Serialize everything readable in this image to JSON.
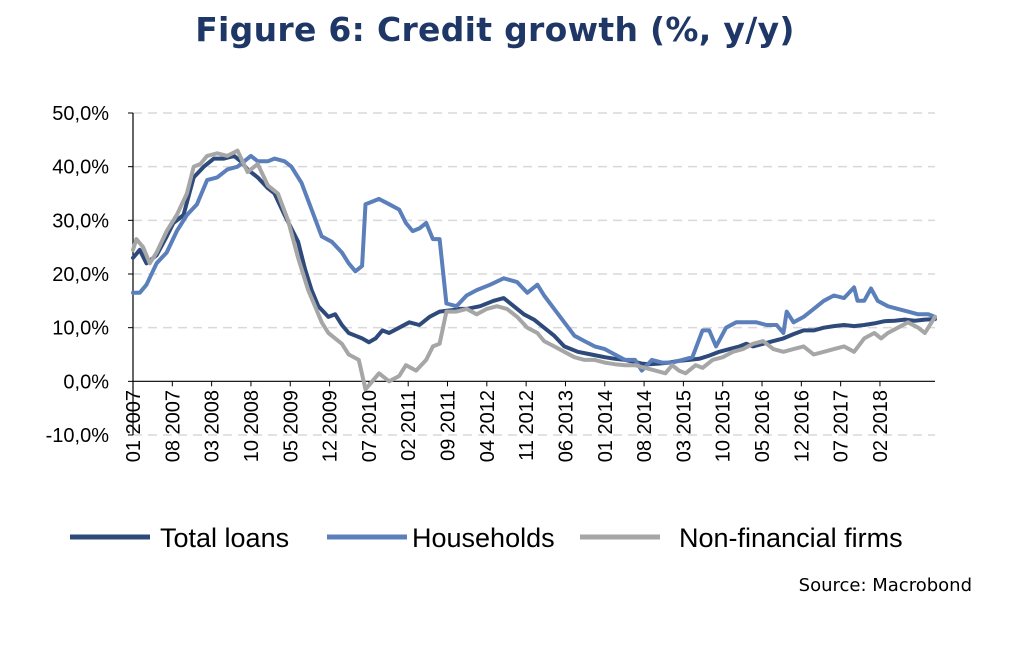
{
  "chart_data": {
    "type": "line",
    "title": "Figure 6: Credit growth (%, y/y)",
    "xlabel": "",
    "ylabel": "",
    "source": "Source: Macrobond",
    "ylim": [
      -10,
      50
    ],
    "yticks": [
      -10,
      0,
      10,
      20,
      30,
      40,
      50
    ],
    "ytick_labels": [
      "-10,0%",
      "0,0%",
      "10,0%",
      "20,0%",
      "30,0%",
      "40,0%",
      "50,0%"
    ],
    "xlim": [
      2007.0,
      2018.9
    ],
    "xtick_labels": [
      "01 2007",
      "08 2007",
      "03 2008",
      "10 2008",
      "05 2009",
      "12 2009",
      "07 2010",
      "02 2011",
      "09 2011",
      "04 2012",
      "11 2012",
      "06 2013",
      "01 2014",
      "08 2014",
      "03 2015",
      "10 2015",
      "05 2016",
      "12 2016",
      "07 2017",
      "02 2018"
    ],
    "grid": true,
    "legend_position": "bottom",
    "series": [
      {
        "name": "Total loans",
        "color": "#2e4a7a",
        "points": [
          [
            2007.0,
            23
          ],
          [
            2007.1,
            24.5
          ],
          [
            2007.2,
            22
          ],
          [
            2007.35,
            23.5
          ],
          [
            2007.5,
            27
          ],
          [
            2007.6,
            29.5
          ],
          [
            2007.75,
            31
          ],
          [
            2007.9,
            38
          ],
          [
            2008.05,
            40
          ],
          [
            2008.2,
            41.5
          ],
          [
            2008.35,
            41.5
          ],
          [
            2008.5,
            42
          ],
          [
            2008.6,
            41
          ],
          [
            2008.7,
            39.5
          ],
          [
            2008.85,
            38
          ],
          [
            2009.0,
            36
          ],
          [
            2009.1,
            35
          ],
          [
            2009.25,
            31
          ],
          [
            2009.45,
            26
          ],
          [
            2009.55,
            21
          ],
          [
            2009.65,
            17
          ],
          [
            2009.75,
            14
          ],
          [
            2009.9,
            12
          ],
          [
            2010.0,
            12.5
          ],
          [
            2010.1,
            10.5
          ],
          [
            2010.2,
            9
          ],
          [
            2010.3,
            8.5
          ],
          [
            2010.4,
            8
          ],
          [
            2010.5,
            7.3
          ],
          [
            2010.6,
            8
          ],
          [
            2010.7,
            9.5
          ],
          [
            2010.8,
            9
          ],
          [
            2010.95,
            10
          ],
          [
            2011.1,
            11
          ],
          [
            2011.25,
            10.5
          ],
          [
            2011.4,
            12
          ],
          [
            2011.55,
            13
          ],
          [
            2011.75,
            13.3
          ],
          [
            2011.85,
            13.5
          ],
          [
            2011.95,
            13.5
          ],
          [
            2012.15,
            14
          ],
          [
            2012.35,
            15
          ],
          [
            2012.5,
            15.5
          ],
          [
            2012.65,
            14
          ],
          [
            2012.8,
            12.5
          ],
          [
            2012.95,
            11.5
          ],
          [
            2013.1,
            10
          ],
          [
            2013.25,
            8.5
          ],
          [
            2013.4,
            6.5
          ],
          [
            2013.6,
            5.5
          ],
          [
            2013.8,
            5
          ],
          [
            2014.0,
            4.5
          ],
          [
            2014.15,
            4.2
          ],
          [
            2014.3,
            4
          ],
          [
            2014.45,
            3.6
          ],
          [
            2014.55,
            3.3
          ],
          [
            2014.65,
            3.2
          ],
          [
            2014.8,
            3.3
          ],
          [
            2014.95,
            3.5
          ],
          [
            2015.1,
            3.8
          ],
          [
            2015.25,
            4
          ],
          [
            2015.4,
            4.2
          ],
          [
            2015.55,
            4.8
          ],
          [
            2015.7,
            5.5
          ],
          [
            2015.85,
            6
          ],
          [
            2016.0,
            6.5
          ],
          [
            2016.1,
            7
          ],
          [
            2016.2,
            6.5
          ],
          [
            2016.35,
            7
          ],
          [
            2016.5,
            7.5
          ],
          [
            2016.65,
            8
          ],
          [
            2016.8,
            8.8
          ],
          [
            2016.95,
            9.5
          ],
          [
            2017.1,
            9.5
          ],
          [
            2017.25,
            10
          ],
          [
            2017.4,
            10.3
          ],
          [
            2017.55,
            10.5
          ],
          [
            2017.7,
            10.3
          ],
          [
            2017.85,
            10.5
          ],
          [
            2018.0,
            10.8
          ],
          [
            2018.15,
            11.2
          ],
          [
            2018.3,
            11.3
          ],
          [
            2018.45,
            11.5
          ],
          [
            2018.6,
            11.3
          ],
          [
            2018.75,
            11.5
          ],
          [
            2018.9,
            11.6
          ]
        ]
      },
      {
        "name": "Households",
        "color": "#5b7fba",
        "points": [
          [
            2007.0,
            16.5
          ],
          [
            2007.1,
            16.5
          ],
          [
            2007.2,
            18
          ],
          [
            2007.35,
            22
          ],
          [
            2007.5,
            24
          ],
          [
            2007.65,
            28
          ],
          [
            2007.8,
            31
          ],
          [
            2007.95,
            33
          ],
          [
            2008.1,
            37.5
          ],
          [
            2008.25,
            38
          ],
          [
            2008.4,
            39.5
          ],
          [
            2008.55,
            40
          ],
          [
            2008.65,
            41
          ],
          [
            2008.75,
            42
          ],
          [
            2008.85,
            41
          ],
          [
            2009.0,
            41
          ],
          [
            2009.1,
            41.5
          ],
          [
            2009.25,
            41
          ],
          [
            2009.35,
            40
          ],
          [
            2009.5,
            37
          ],
          [
            2009.65,
            32
          ],
          [
            2009.8,
            27
          ],
          [
            2009.95,
            26
          ],
          [
            2010.1,
            24
          ],
          [
            2010.2,
            22
          ],
          [
            2010.3,
            20.5
          ],
          [
            2010.4,
            21.5
          ],
          [
            2010.45,
            33
          ],
          [
            2010.55,
            33.5
          ],
          [
            2010.65,
            34
          ],
          [
            2010.8,
            33
          ],
          [
            2010.95,
            32
          ],
          [
            2011.05,
            29.5
          ],
          [
            2011.15,
            28
          ],
          [
            2011.25,
            28.5
          ],
          [
            2011.35,
            29.5
          ],
          [
            2011.45,
            26.5
          ],
          [
            2011.55,
            26.5
          ],
          [
            2011.65,
            14.5
          ],
          [
            2011.8,
            14
          ],
          [
            2011.95,
            16
          ],
          [
            2012.1,
            17
          ],
          [
            2012.3,
            18
          ],
          [
            2012.5,
            19.2
          ],
          [
            2012.7,
            18.5
          ],
          [
            2012.85,
            16.5
          ],
          [
            2013.0,
            18
          ],
          [
            2013.1,
            16
          ],
          [
            2013.25,
            13.5
          ],
          [
            2013.4,
            11
          ],
          [
            2013.55,
            8.5
          ],
          [
            2013.7,
            7.5
          ],
          [
            2013.85,
            6.5
          ],
          [
            2014.0,
            6
          ],
          [
            2014.15,
            5
          ],
          [
            2014.3,
            4
          ],
          [
            2014.45,
            4
          ],
          [
            2014.55,
            2
          ],
          [
            2014.7,
            4
          ],
          [
            2014.85,
            3.5
          ],
          [
            2015.0,
            3.5
          ],
          [
            2015.15,
            4
          ],
          [
            2015.3,
            4.5
          ],
          [
            2015.45,
            9.5
          ],
          [
            2015.55,
            9.5
          ],
          [
            2015.65,
            6.5
          ],
          [
            2015.8,
            10
          ],
          [
            2015.95,
            11
          ],
          [
            2016.1,
            11
          ],
          [
            2016.25,
            11
          ],
          [
            2016.4,
            10.5
          ],
          [
            2016.55,
            10.5
          ],
          [
            2016.65,
            9
          ],
          [
            2016.7,
            13
          ],
          [
            2016.8,
            11
          ],
          [
            2016.95,
            12
          ],
          [
            2017.1,
            13.5
          ],
          [
            2017.25,
            15
          ],
          [
            2017.4,
            16
          ],
          [
            2017.55,
            15.5
          ],
          [
            2017.7,
            17.5
          ],
          [
            2017.75,
            15
          ],
          [
            2017.85,
            15
          ],
          [
            2017.95,
            17.3
          ],
          [
            2018.05,
            15
          ],
          [
            2018.2,
            14
          ],
          [
            2018.35,
            13.5
          ],
          [
            2018.5,
            13
          ],
          [
            2018.65,
            12.5
          ],
          [
            2018.8,
            12.5
          ],
          [
            2018.9,
            12
          ]
        ]
      },
      {
        "name": "Non-financial firms",
        "color": "#a6a6a6",
        "points": [
          [
            2007.0,
            24.5
          ],
          [
            2007.05,
            26.5
          ],
          [
            2007.15,
            25
          ],
          [
            2007.25,
            22
          ],
          [
            2007.35,
            24
          ],
          [
            2007.5,
            28
          ],
          [
            2007.65,
            31
          ],
          [
            2007.8,
            35
          ],
          [
            2007.9,
            40
          ],
          [
            2008.0,
            40.5
          ],
          [
            2008.1,
            42
          ],
          [
            2008.25,
            42.5
          ],
          [
            2008.4,
            42
          ],
          [
            2008.55,
            43
          ],
          [
            2008.7,
            39
          ],
          [
            2008.85,
            40.5
          ],
          [
            2009.0,
            36.5
          ],
          [
            2009.15,
            35
          ],
          [
            2009.3,
            30
          ],
          [
            2009.45,
            23
          ],
          [
            2009.6,
            17
          ],
          [
            2009.7,
            14
          ],
          [
            2009.8,
            11
          ],
          [
            2009.9,
            9
          ],
          [
            2010.0,
            8
          ],
          [
            2010.1,
            7
          ],
          [
            2010.2,
            5
          ],
          [
            2010.35,
            4
          ],
          [
            2010.45,
            -1.5
          ],
          [
            2010.55,
            0
          ],
          [
            2010.65,
            1.5
          ],
          [
            2010.8,
            0
          ],
          [
            2010.95,
            1
          ],
          [
            2011.05,
            3
          ],
          [
            2011.2,
            2
          ],
          [
            2011.35,
            4
          ],
          [
            2011.45,
            6.5
          ],
          [
            2011.55,
            7
          ],
          [
            2011.65,
            13
          ],
          [
            2011.8,
            13
          ],
          [
            2011.95,
            13.5
          ],
          [
            2012.1,
            12.5
          ],
          [
            2012.25,
            13.5
          ],
          [
            2012.4,
            14
          ],
          [
            2012.55,
            13.5
          ],
          [
            2012.7,
            12
          ],
          [
            2012.85,
            10
          ],
          [
            2013.0,
            9
          ],
          [
            2013.1,
            7.5
          ],
          [
            2013.25,
            6.5
          ],
          [
            2013.4,
            5.5
          ],
          [
            2013.55,
            4.5
          ],
          [
            2013.7,
            4
          ],
          [
            2013.85,
            4
          ],
          [
            2014.0,
            3.5
          ],
          [
            2014.15,
            3.2
          ],
          [
            2014.3,
            3
          ],
          [
            2014.45,
            3
          ],
          [
            2014.6,
            2.5
          ],
          [
            2014.75,
            2
          ],
          [
            2014.9,
            1.5
          ],
          [
            2015.0,
            3
          ],
          [
            2015.1,
            2
          ],
          [
            2015.2,
            1.5
          ],
          [
            2015.35,
            3
          ],
          [
            2015.45,
            2.5
          ],
          [
            2015.6,
            4
          ],
          [
            2015.75,
            4.5
          ],
          [
            2015.9,
            5.5
          ],
          [
            2016.05,
            6
          ],
          [
            2016.2,
            7
          ],
          [
            2016.35,
            7.5
          ],
          [
            2016.5,
            6
          ],
          [
            2016.65,
            5.5
          ],
          [
            2016.8,
            6
          ],
          [
            2016.95,
            6.5
          ],
          [
            2017.1,
            5
          ],
          [
            2017.25,
            5.5
          ],
          [
            2017.4,
            6
          ],
          [
            2017.55,
            6.5
          ],
          [
            2017.7,
            5.5
          ],
          [
            2017.85,
            8
          ],
          [
            2018.0,
            9
          ],
          [
            2018.1,
            8
          ],
          [
            2018.2,
            9
          ],
          [
            2018.35,
            10
          ],
          [
            2018.5,
            11
          ],
          [
            2018.65,
            10
          ],
          [
            2018.75,
            9
          ],
          [
            2018.85,
            11
          ],
          [
            2018.9,
            12
          ]
        ]
      }
    ]
  }
}
